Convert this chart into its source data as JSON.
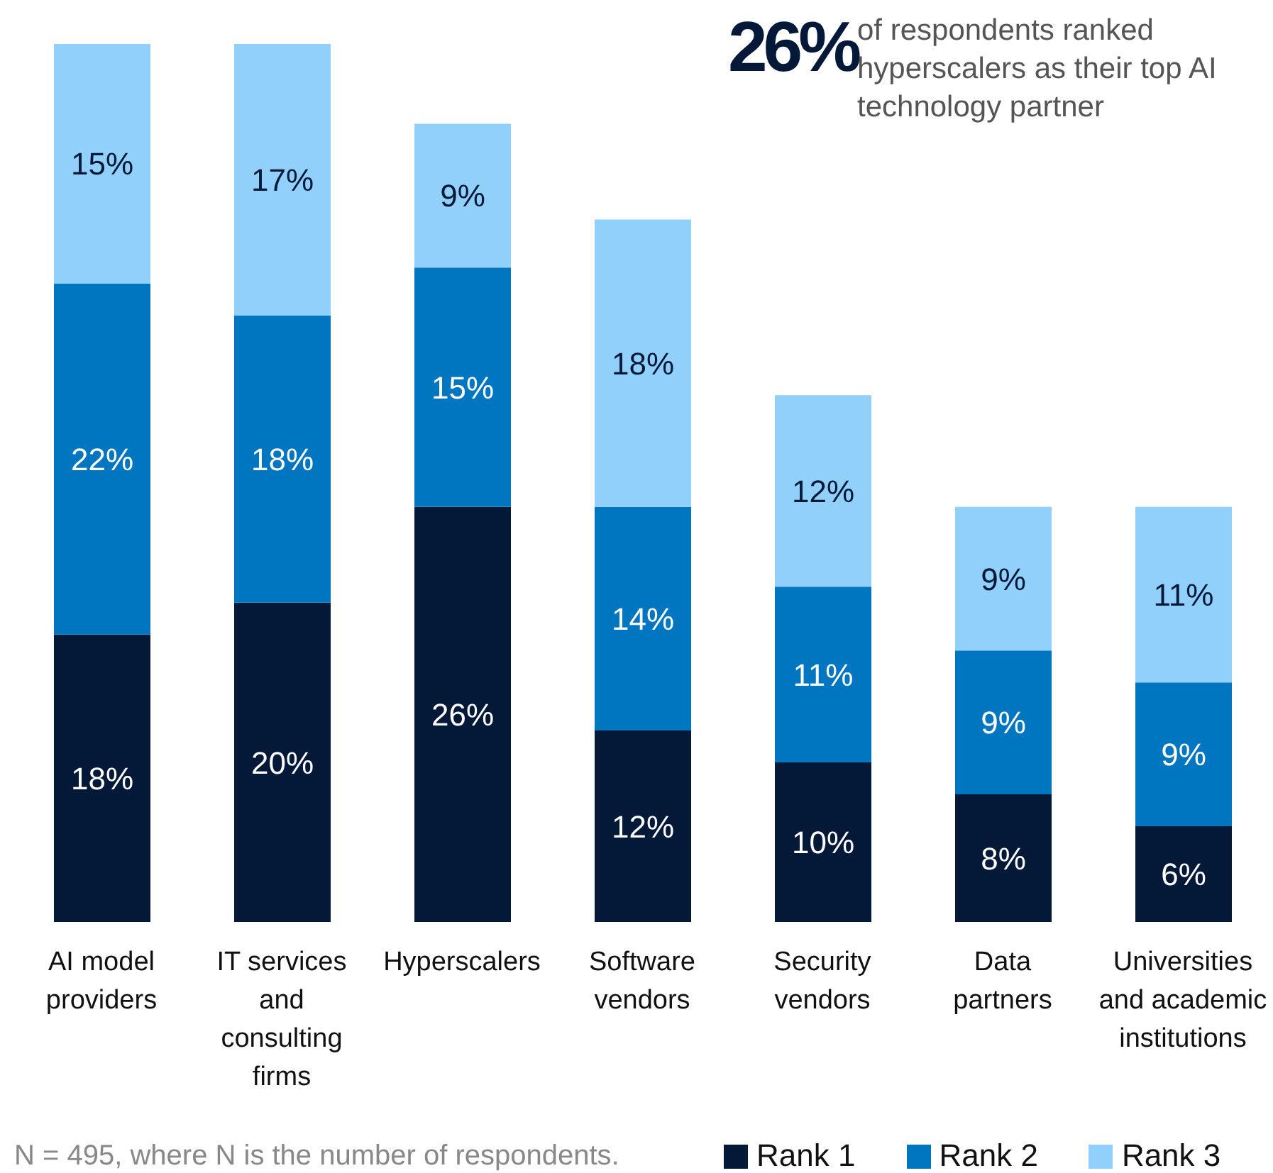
{
  "chart_data": {
    "type": "bar",
    "stacked": true,
    "legend": "bottom right",
    "grid": false,
    "categories": [
      "AI model providers",
      "IT services and consulting firms",
      "Hyperscalers",
      "Software vendors",
      "Security vendors",
      "Data partners",
      "Universities and academic institutions"
    ],
    "series": [
      {
        "name": "Rank 1",
        "color": "#041838",
        "values": [
          18,
          20,
          26,
          12,
          10,
          8,
          6
        ],
        "value_labels": [
          "18%",
          "20%",
          "26%",
          "12%",
          "10%",
          "8%",
          "6%"
        ]
      },
      {
        "name": "Rank 2",
        "color": "#0076c0",
        "values": [
          22,
          18,
          15,
          14,
          11,
          9,
          9
        ],
        "value_labels": [
          "22%",
          "18%",
          "15%",
          "14%",
          "11%",
          "9%",
          "9%"
        ]
      },
      {
        "name": "Rank 3",
        "color": "#90d0fb",
        "values": [
          15,
          17,
          9,
          18,
          12,
          9,
          11
        ],
        "value_labels": [
          "15%",
          "17%",
          "9%",
          "18%",
          "12%",
          "9%",
          "11%"
        ]
      }
    ],
    "annotations": [
      "26%",
      "of respondents ranked hyperscalers as their top AI technology partner",
      "N = 495, where N is the number of respondents."
    ]
  }
}
